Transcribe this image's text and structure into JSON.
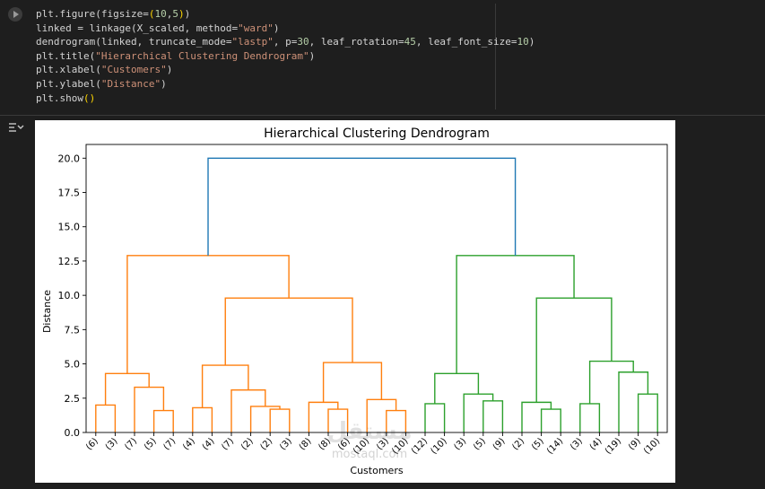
{
  "code_lines": [
    [
      {
        "t": "plt.figure(figsize=",
        "c": ""
      },
      {
        "t": "(",
        "c": "par"
      },
      {
        "t": "10",
        "c": "num"
      },
      {
        "t": ",",
        "c": ""
      },
      {
        "t": "5",
        "c": "num"
      },
      {
        "t": ")",
        "c": "par"
      },
      {
        "t": ")",
        "c": ""
      }
    ],
    [
      {
        "t": "linked = linkage(X_scaled, method=",
        "c": ""
      },
      {
        "t": "\"ward\"",
        "c": "str"
      },
      {
        "t": ")",
        "c": ""
      }
    ],
    [
      {
        "t": "dendrogram(linked, truncate_mode=",
        "c": ""
      },
      {
        "t": "\"lastp\"",
        "c": "str"
      },
      {
        "t": ", p=",
        "c": ""
      },
      {
        "t": "30",
        "c": "num"
      },
      {
        "t": ", leaf_rotation=",
        "c": ""
      },
      {
        "t": "45",
        "c": "num"
      },
      {
        "t": ", leaf_font_size=",
        "c": ""
      },
      {
        "t": "10",
        "c": "num"
      },
      {
        "t": ")",
        "c": ""
      }
    ],
    [
      {
        "t": "plt.title(",
        "c": ""
      },
      {
        "t": "\"Hierarchical Clustering Dendrogram\"",
        "c": "str"
      },
      {
        "t": ")",
        "c": ""
      }
    ],
    [
      {
        "t": "plt.xlabel(",
        "c": ""
      },
      {
        "t": "\"Customers\"",
        "c": "str"
      },
      {
        "t": ")",
        "c": ""
      }
    ],
    [
      {
        "t": "plt.ylabel(",
        "c": ""
      },
      {
        "t": "\"Distance\"",
        "c": "str"
      },
      {
        "t": ")",
        "c": ""
      }
    ],
    [
      {
        "t": "plt.show",
        "c": ""
      },
      {
        "t": "()",
        "c": "par"
      }
    ]
  ],
  "icons": {
    "run": "run-cell-icon",
    "output": "output-toggle-icon"
  },
  "colors": {
    "orange": "#ff7f0e",
    "green": "#2ca02c",
    "blue": "#1f77b4"
  },
  "watermark": "mostaql.com",
  "chart_data": {
    "type": "dendrogram",
    "title": "Hierarchical Clustering Dendrogram",
    "xlabel": "Customers",
    "ylabel": "Distance",
    "ylim": [
      0,
      21.0
    ],
    "yticks": [
      "0.0",
      "2.5",
      "5.0",
      "7.5",
      "10.0",
      "12.5",
      "15.0",
      "17.5",
      "20.0"
    ],
    "leaves": [
      "(6)",
      "(3)",
      "(7)",
      "(5)",
      "(7)",
      "(4)",
      "(4)",
      "(7)",
      "(2)",
      "(2)",
      "(3)",
      "(8)",
      "(8)",
      "(6)",
      "(10)",
      "(3)",
      "(10)",
      "(12)",
      "(10)",
      "(3)",
      "(5)",
      "(9)",
      "(2)",
      "(5)",
      "(14)",
      "(3)",
      "(4)",
      "(19)",
      "(9)",
      "(10)"
    ],
    "merges": [
      {
        "a": "L0",
        "b": "L1",
        "h": 2.0,
        "color": "orange"
      },
      {
        "a": "L3",
        "b": "L4",
        "h": 1.6,
        "color": "orange"
      },
      {
        "a": "L2",
        "b": "N1",
        "h": 3.3,
        "color": "orange"
      },
      {
        "a": "N0",
        "b": "N2",
        "h": 4.3,
        "color": "orange"
      },
      {
        "a": "L9",
        "b": "L10",
        "h": 1.7,
        "color": "orange"
      },
      {
        "a": "L8",
        "b": "N4",
        "h": 1.9,
        "color": "orange"
      },
      {
        "a": "L7",
        "b": "N5",
        "h": 3.1,
        "color": "orange"
      },
      {
        "a": "L5",
        "b": "L6",
        "h": 1.8,
        "color": "orange"
      },
      {
        "a": "N7",
        "b": "N6",
        "h": 4.9,
        "color": "orange"
      },
      {
        "a": "L12",
        "b": "L13",
        "h": 1.7,
        "color": "orange"
      },
      {
        "a": "L11",
        "b": "N9",
        "h": 2.2,
        "color": "orange"
      },
      {
        "a": "L15",
        "b": "L16",
        "h": 1.6,
        "color": "orange"
      },
      {
        "a": "L14",
        "b": "N11",
        "h": 2.4,
        "color": "orange"
      },
      {
        "a": "N10",
        "b": "N12",
        "h": 5.1,
        "color": "orange"
      },
      {
        "a": "N8",
        "b": "N13",
        "h": 9.8,
        "color": "orange"
      },
      {
        "a": "N3",
        "b": "N14",
        "h": 12.9,
        "color": "orange"
      },
      {
        "a": "L17",
        "b": "L18",
        "h": 2.1,
        "color": "green"
      },
      {
        "a": "L20",
        "b": "L21",
        "h": 2.3,
        "color": "green"
      },
      {
        "a": "L19",
        "b": "N17",
        "h": 2.8,
        "color": "green"
      },
      {
        "a": "N16",
        "b": "N18",
        "h": 4.3,
        "color": "green"
      },
      {
        "a": "L23",
        "b": "L24",
        "h": 1.7,
        "color": "green"
      },
      {
        "a": "L22",
        "b": "N20",
        "h": 2.2,
        "color": "green"
      },
      {
        "a": "L25",
        "b": "L26",
        "h": 2.1,
        "color": "green"
      },
      {
        "a": "L28",
        "b": "L29",
        "h": 2.8,
        "color": "green"
      },
      {
        "a": "L27",
        "b": "N23",
        "h": 4.4,
        "color": "green"
      },
      {
        "a": "N22",
        "b": "N24",
        "h": 5.2,
        "color": "green"
      },
      {
        "a": "N21",
        "b": "N25",
        "h": 9.8,
        "color": "green"
      },
      {
        "a": "N19",
        "b": "N26",
        "h": 12.9,
        "color": "green"
      },
      {
        "a": "N15",
        "b": "N27",
        "h": 20.0,
        "color": "blue"
      }
    ]
  }
}
